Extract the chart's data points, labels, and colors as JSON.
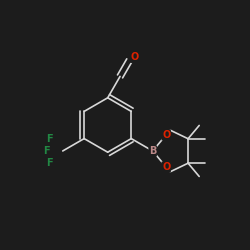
{
  "bg_color": "#1c1c1c",
  "bond_color": "#d8d8d8",
  "atom_colors": {
    "O": "#dd2200",
    "B": "#bb8888",
    "F": "#228844",
    "C": "#d8d8d8"
  },
  "bond_lw": 1.2,
  "font_size": 7.0
}
